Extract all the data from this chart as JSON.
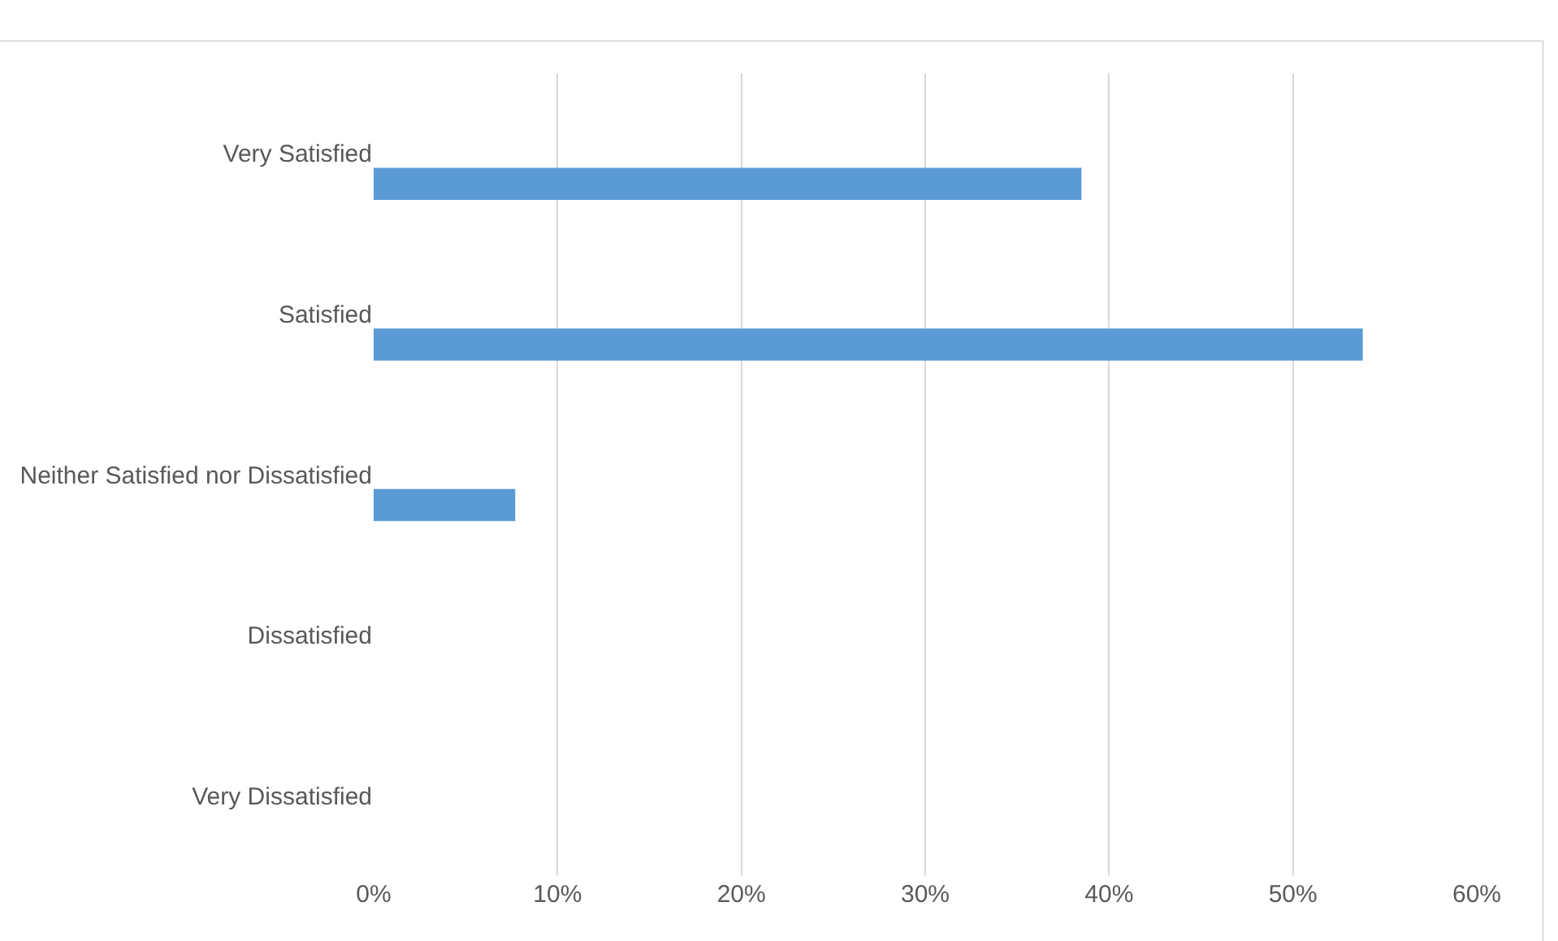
{
  "chart_data": {
    "type": "bar",
    "orientation": "horizontal",
    "categories": [
      "Very Satisfied",
      "Satisfied",
      "Neither Satisfied nor Dissatisfied",
      "Dissatisfied",
      "Very Dissatisfied"
    ],
    "values": [
      38.5,
      53.8,
      7.7,
      0,
      0
    ],
    "color": "#5b9bd5",
    "xlim": [
      0,
      60
    ],
    "xticks": [
      {
        "value": 0,
        "label": "0%"
      },
      {
        "value": 10,
        "label": "10%"
      },
      {
        "value": 20,
        "label": "20%"
      },
      {
        "value": 30,
        "label": "30%"
      },
      {
        "value": 40,
        "label": "40%"
      },
      {
        "value": 50,
        "label": "50%"
      },
      {
        "value": 60,
        "label": "60%"
      }
    ],
    "grid": "x",
    "legend": false
  }
}
